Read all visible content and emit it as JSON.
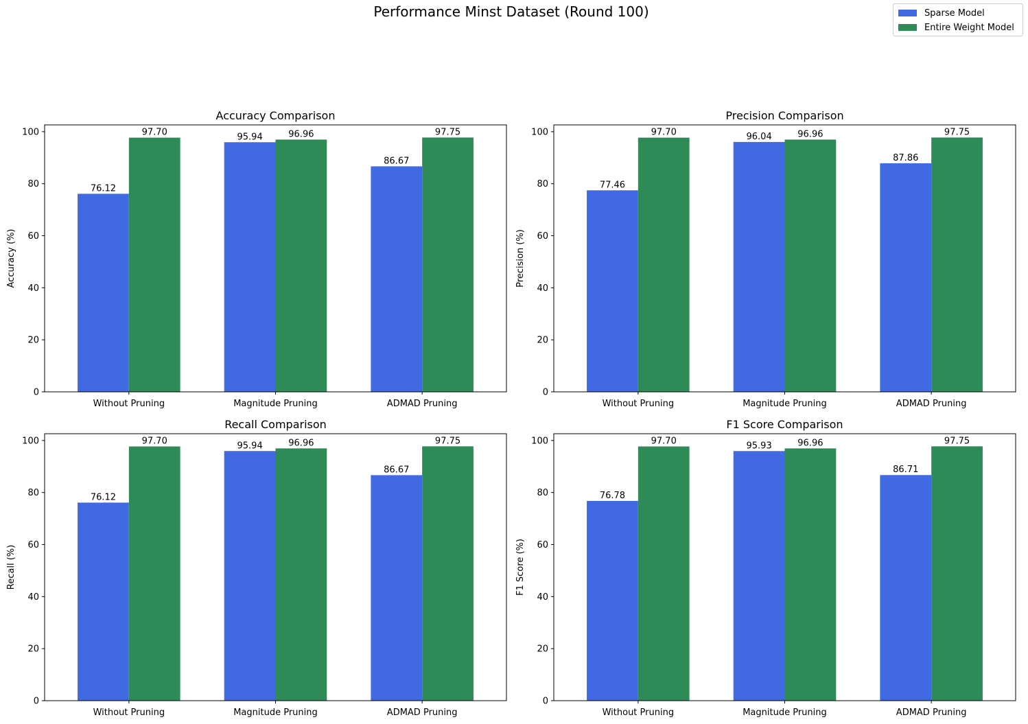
{
  "figure_title": "Performance Minst Dataset (Round 100)",
  "legend": {
    "items": [
      {
        "label": "Sparse Model",
        "color": "#4169e1"
      },
      {
        "label": "Entire Weight Model",
        "color": "#2e8b57"
      }
    ]
  },
  "chart_data": [
    {
      "type": "bar",
      "title": "Accuracy Comparison",
      "ylabel": "Accuracy (%)",
      "xlabel": "",
      "categories": [
        "Without Pruning",
        "Magnitude Pruning",
        "ADMAD Pruning"
      ],
      "series": [
        {
          "name": "Sparse Model",
          "color": "#4169e1",
          "values": [
            76.12,
            95.94,
            86.67
          ]
        },
        {
          "name": "Entire Weight Model",
          "color": "#2e8b57",
          "values": [
            97.7,
            96.96,
            97.75
          ]
        }
      ],
      "data_labels": [
        [
          "76.12",
          "95.94",
          "86.67"
        ],
        [
          "97.70",
          "96.96",
          "97.75"
        ]
      ],
      "yticks": [
        "0",
        "20",
        "40",
        "60",
        "80",
        "100"
      ],
      "ylim": [
        0,
        102.6
      ],
      "grid": false
    },
    {
      "type": "bar",
      "title": "Precision Comparison",
      "ylabel": "Precision (%)",
      "xlabel": "",
      "categories": [
        "Without Pruning",
        "Magnitude Pruning",
        "ADMAD Pruning"
      ],
      "series": [
        {
          "name": "Sparse Model",
          "color": "#4169e1",
          "values": [
            77.46,
            96.04,
            87.86
          ]
        },
        {
          "name": "Entire Weight Model",
          "color": "#2e8b57",
          "values": [
            97.7,
            96.96,
            97.75
          ]
        }
      ],
      "data_labels": [
        [
          "77.46",
          "96.04",
          "87.86"
        ],
        [
          "97.70",
          "96.96",
          "97.75"
        ]
      ],
      "yticks": [
        "0",
        "20",
        "40",
        "60",
        "80",
        "100"
      ],
      "ylim": [
        0,
        102.6
      ],
      "grid": false
    },
    {
      "type": "bar",
      "title": "Recall Comparison",
      "ylabel": "Recall (%)",
      "xlabel": "",
      "categories": [
        "Without Pruning",
        "Magnitude Pruning",
        "ADMAD Pruning"
      ],
      "series": [
        {
          "name": "Sparse Model",
          "color": "#4169e1",
          "values": [
            76.12,
            95.94,
            86.67
          ]
        },
        {
          "name": "Entire Weight Model",
          "color": "#2e8b57",
          "values": [
            97.7,
            96.96,
            97.75
          ]
        }
      ],
      "data_labels": [
        [
          "76.12",
          "95.94",
          "86.67"
        ],
        [
          "97.70",
          "96.96",
          "97.75"
        ]
      ],
      "yticks": [
        "0",
        "20",
        "40",
        "60",
        "80",
        "100"
      ],
      "ylim": [
        0,
        102.6
      ],
      "grid": false
    },
    {
      "type": "bar",
      "title": "F1 Score Comparison",
      "ylabel": "F1 Score (%)",
      "xlabel": "",
      "categories": [
        "Without Pruning",
        "Magnitude Pruning",
        "ADMAD Pruning"
      ],
      "series": [
        {
          "name": "Sparse Model",
          "color": "#4169e1",
          "values": [
            76.78,
            95.93,
            86.71
          ]
        },
        {
          "name": "Entire Weight Model",
          "color": "#2e8b57",
          "values": [
            97.7,
            96.96,
            97.75
          ]
        }
      ],
      "data_labels": [
        [
          "76.78",
          "95.93",
          "86.71"
        ],
        [
          "97.70",
          "96.96",
          "97.75"
        ]
      ],
      "yticks": [
        "0",
        "20",
        "40",
        "60",
        "80",
        "100"
      ],
      "ylim": [
        0,
        102.6
      ],
      "grid": false
    }
  ]
}
